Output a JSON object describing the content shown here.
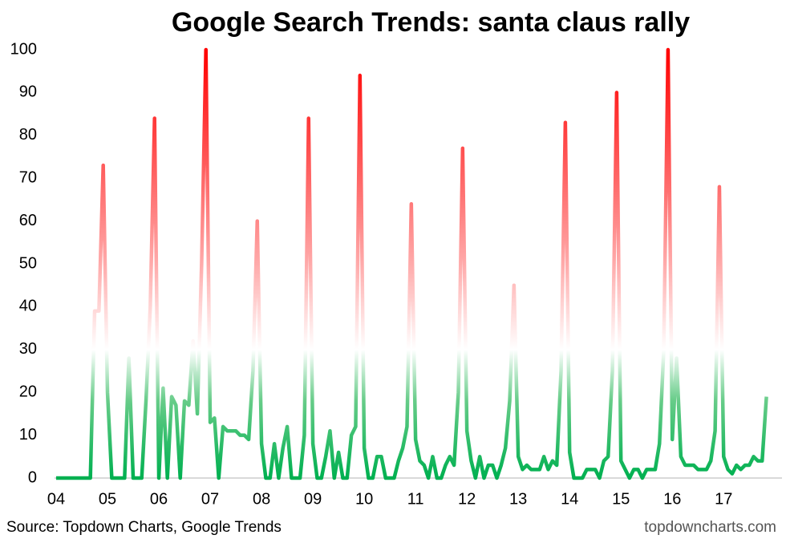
{
  "chart_data": {
    "type": "line",
    "title": "Google Search Trends: santa claus rally",
    "source": "Source: Topdown Charts, Google Trends",
    "watermark": "topdowncharts.com",
    "categories": [
      "04",
      null,
      null,
      null,
      null,
      null,
      null,
      null,
      null,
      null,
      null,
      null,
      "05",
      null,
      null,
      null,
      null,
      null,
      null,
      null,
      null,
      null,
      null,
      null,
      "06",
      null,
      null,
      null,
      null,
      null,
      null,
      null,
      null,
      null,
      null,
      null,
      "07",
      null,
      null,
      null,
      null,
      null,
      null,
      null,
      null,
      null,
      null,
      null,
      "08",
      null,
      null,
      null,
      null,
      null,
      null,
      null,
      null,
      null,
      null,
      null,
      "09",
      null,
      null,
      null,
      null,
      null,
      null,
      null,
      null,
      null,
      null,
      null,
      "10",
      null,
      null,
      null,
      null,
      null,
      null,
      null,
      null,
      null,
      null,
      null,
      "11",
      null,
      null,
      null,
      null,
      null,
      null,
      null,
      null,
      null,
      null,
      null,
      "12",
      null,
      null,
      null,
      null,
      null,
      null,
      null,
      null,
      null,
      null,
      null,
      "13",
      null,
      null,
      null,
      null,
      null,
      null,
      null,
      null,
      null,
      null,
      null,
      "14",
      null,
      null,
      null,
      null,
      null,
      null,
      null,
      null,
      null,
      null,
      null,
      "15",
      null,
      null,
      null,
      null,
      null,
      null,
      null,
      null,
      null,
      null,
      null,
      "16",
      null,
      null,
      null,
      null,
      null,
      null,
      null,
      null,
      null,
      null,
      null,
      "17",
      null,
      null,
      null,
      null,
      null,
      null,
      null,
      null,
      null,
      null
    ],
    "values": [
      0,
      0,
      0,
      0,
      0,
      0,
      0,
      0,
      0,
      39,
      39,
      73,
      20,
      0,
      0,
      0,
      0,
      28,
      0,
      0,
      0,
      18,
      40,
      84,
      0,
      21,
      0,
      19,
      17,
      0,
      18,
      17,
      32,
      15,
      50,
      100,
      13,
      14,
      0,
      12,
      11,
      11,
      11,
      10,
      10,
      9,
      25,
      60,
      8,
      0,
      0,
      8,
      0,
      7,
      12,
      0,
      0,
      0,
      10,
      84,
      8,
      0,
      0,
      5,
      11,
      0,
      6,
      0,
      0,
      10,
      12,
      94,
      7,
      0,
      0,
      5,
      5,
      0,
      0,
      0,
      4,
      7,
      12,
      64,
      9,
      4,
      3,
      0,
      5,
      0,
      0,
      3,
      5,
      3,
      20,
      77,
      11,
      4,
      0,
      5,
      0,
      3,
      3,
      0,
      3,
      7,
      18,
      45,
      5,
      2,
      3,
      2,
      2,
      2,
      5,
      2,
      4,
      3,
      25,
      83,
      6,
      0,
      0,
      0,
      2,
      2,
      2,
      0,
      4,
      5,
      25,
      90,
      4,
      2,
      0,
      2,
      2,
      0,
      2,
      2,
      2,
      8,
      30,
      100,
      9,
      28,
      5,
      3,
      3,
      3,
      2,
      2,
      2,
      4,
      11,
      68,
      5,
      2,
      1,
      3,
      2,
      3,
      3,
      5,
      4,
      4,
      19
    ],
    "gradient_colors": [
      "#ff0000",
      "#ffffff",
      "#00b050"
    ],
    "ylim": [
      0,
      100
    ],
    "yticks": [
      0,
      10,
      20,
      30,
      40,
      50,
      60,
      70,
      80,
      90,
      100
    ],
    "grid": false
  }
}
